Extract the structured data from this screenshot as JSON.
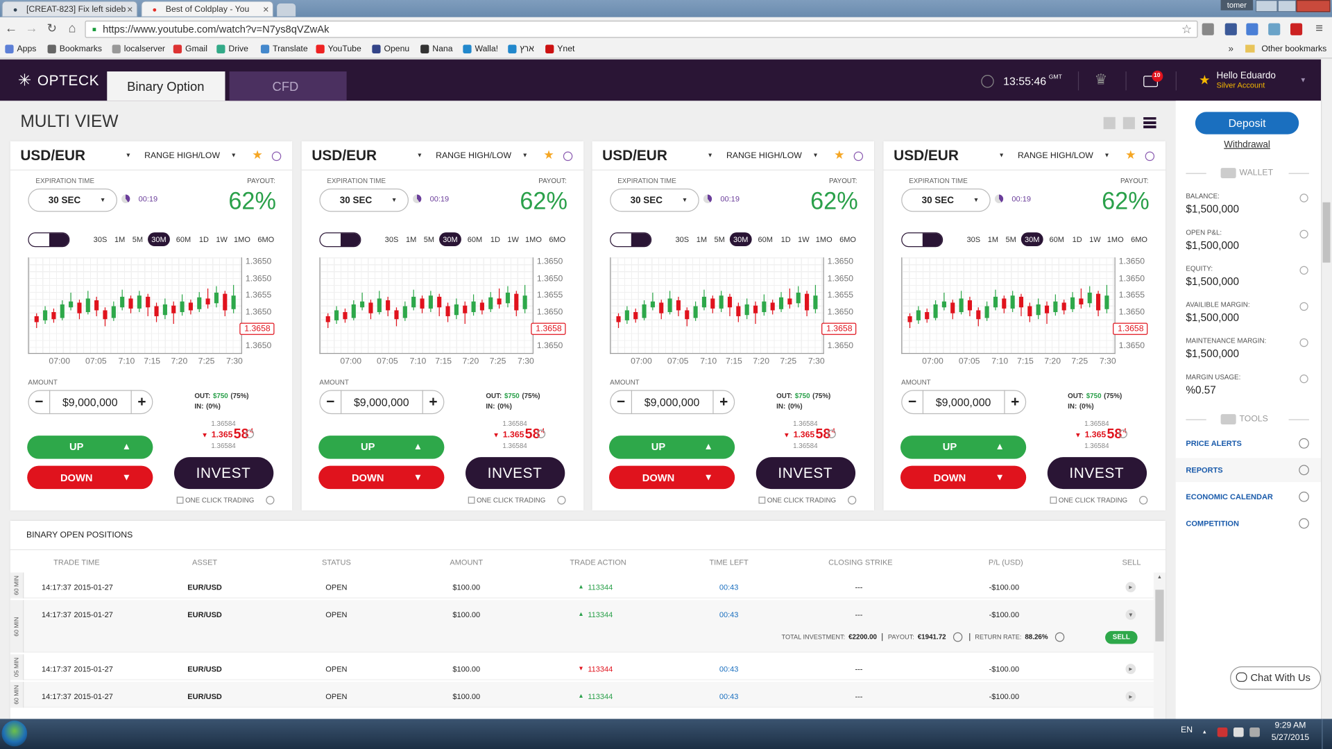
{
  "browser": {
    "tabs": [
      "[CREAT-823] Fix left sideb",
      "Best of Coldplay - You"
    ],
    "user": "tomer",
    "url": "https://www.youtube.com/watch?v=N7ys8qVZwAk",
    "bookmarks": [
      "Apps",
      "Bookmarks",
      "localserver",
      "Gmail",
      "Drive",
      "Translate",
      "YouTube",
      "Openu",
      "Nana",
      "Walla!",
      "ארץ",
      "Ynet"
    ],
    "other_bookmarks": "Other bookmarks"
  },
  "header": {
    "logo": "OPTECK",
    "tabs": [
      "Binary Option",
      "CFD"
    ],
    "time": "13:55:46",
    "time_zone": "GMT",
    "mail_count": "10",
    "greeting": "Hello Eduardo",
    "account": "Silver Account"
  },
  "page_title": "MULTI VIEW",
  "candle_chart": {
    "candles": [
      [
        1.36505,
        1.36495,
        1.3651,
        1.36485
      ],
      [
        1.36498,
        1.36515,
        1.36522,
        1.36492
      ],
      [
        1.36512,
        1.365,
        1.36518,
        1.36494
      ],
      [
        1.36502,
        1.36525,
        1.36532,
        1.36498
      ],
      [
        1.3652,
        1.3653,
        1.36545,
        1.36515
      ],
      [
        1.36528,
        1.3651,
        1.36533,
        1.365
      ],
      [
        1.36512,
        1.36535,
        1.36548,
        1.36508
      ],
      [
        1.36532,
        1.36515,
        1.36538,
        1.36505
      ],
      [
        1.36515,
        1.365,
        1.3652,
        1.36488
      ],
      [
        1.36502,
        1.36522,
        1.3653,
        1.36497
      ],
      [
        1.3652,
        1.36538,
        1.3655,
        1.36515
      ],
      [
        1.36535,
        1.36518,
        1.3654,
        1.3651
      ],
      [
        1.36518,
        1.3654,
        1.36548,
        1.36512
      ],
      [
        1.36538,
        1.3652,
        1.36543,
        1.36505
      ],
      [
        1.36522,
        1.36505,
        1.36528,
        1.36495
      ],
      [
        1.36507,
        1.36525,
        1.36535,
        1.365
      ],
      [
        1.36523,
        1.3651,
        1.3653,
        1.36492
      ],
      [
        1.36512,
        1.3653,
        1.36542,
        1.36506
      ],
      [
        1.36528,
        1.36515,
        1.36533,
        1.36508
      ],
      [
        1.36517,
        1.36537,
        1.36546,
        1.36512
      ],
      [
        1.36535,
        1.36525,
        1.36552,
        1.36518
      ],
      [
        1.36527,
        1.36545,
        1.36556,
        1.3652
      ],
      [
        1.36543,
        1.36515,
        1.36548,
        1.36505
      ],
      [
        1.36517,
        1.3654,
        1.36558,
        1.3651
      ]
    ]
  },
  "panels": [
    {
      "asset": "USD/EUR",
      "mode": "RANGE HIGH/LOW",
      "expiration_label": "EXPIRATION TIME",
      "expiration": "30 SEC",
      "countdown": "00:19",
      "payout_label": "PAYOUT:",
      "payout": "62%",
      "periods": [
        "30S",
        "1M",
        "5M",
        "30M",
        "60M",
        "1D",
        "1W",
        "1MO",
        "6MO"
      ],
      "price_labels": [
        "1.3650",
        "1.3650",
        "1.3655",
        "1.3650",
        "1.3658",
        "1.3650"
      ],
      "time_labels": [
        "07:00",
        "07:05",
        "7:10",
        "7:15",
        "7:20",
        "7:25",
        "7:30"
      ],
      "amount_label": "AMOUNT",
      "amount": "$9,000,000",
      "out_label": "OUT:",
      "out_value": "$750",
      "out_pct": "(75%)",
      "in_label": "IN:",
      "in_value": "(0%)",
      "rate_above": "1.36584",
      "rate_main": "1.365",
      "rate_big": "58",
      "rate_sup": "4",
      "rate_below": "1.36584",
      "up": "UP",
      "down": "DOWN",
      "invest": "INVEST",
      "one_click": "ONE CLICK TRADING"
    },
    {
      "asset": "USD/EUR",
      "mode": "RANGE HIGH/LOW",
      "expiration_label": "EXPIRATION TIME",
      "expiration": "30 SEC",
      "countdown": "00:19",
      "payout_label": "PAYOUT:",
      "payout": "62%",
      "periods": [
        "30S",
        "1M",
        "5M",
        "30M",
        "60M",
        "1D",
        "1W",
        "1MO",
        "6MO"
      ],
      "price_labels": [
        "1.3650",
        "1.3650",
        "1.3655",
        "1.3650",
        "1.3658",
        "1.3650"
      ],
      "time_labels": [
        "07:00",
        "07:05",
        "7:10",
        "7:15",
        "7:20",
        "7:25",
        "7:30"
      ],
      "amount_label": "AMOUNT",
      "amount": "$9,000,000",
      "out_label": "OUT:",
      "out_value": "$750",
      "out_pct": "(75%)",
      "in_label": "IN:",
      "in_value": "(0%)",
      "rate_above": "1.36584",
      "rate_main": "1.365",
      "rate_big": "58",
      "rate_sup": "4",
      "rate_below": "1.36584",
      "up": "UP",
      "down": "DOWN",
      "invest": "INVEST",
      "one_click": "ONE CLICK TRADING"
    },
    {
      "asset": "USD/EUR",
      "mode": "RANGE HIGH/LOW",
      "expiration_label": "EXPIRATION TIME",
      "expiration": "30 SEC",
      "countdown": "00:19",
      "payout_label": "PAYOUT:",
      "payout": "62%",
      "periods": [
        "30S",
        "1M",
        "5M",
        "30M",
        "60M",
        "1D",
        "1W",
        "1MO",
        "6MO"
      ],
      "price_labels": [
        "1.3650",
        "1.3650",
        "1.3655",
        "1.3650",
        "1.3658",
        "1.3650"
      ],
      "time_labels": [
        "07:00",
        "07:05",
        "7:10",
        "7:15",
        "7:20",
        "7:25",
        "7:30"
      ],
      "amount_label": "AMOUNT",
      "amount": "$9,000,000",
      "out_label": "OUT:",
      "out_value": "$750",
      "out_pct": "(75%)",
      "in_label": "IN:",
      "in_value": "(0%)",
      "rate_above": "1.36584",
      "rate_main": "1.365",
      "rate_big": "58",
      "rate_sup": "4",
      "rate_below": "1.36584",
      "up": "UP",
      "down": "DOWN",
      "invest": "INVEST",
      "one_click": "ONE CLICK TRADING"
    },
    {
      "asset": "USD/EUR",
      "mode": "RANGE HIGH/LOW",
      "expiration_label": "EXPIRATION TIME",
      "expiration": "30 SEC",
      "countdown": "00:19",
      "payout_label": "PAYOUT:",
      "payout": "62%",
      "periods": [
        "30S",
        "1M",
        "5M",
        "30M",
        "60M",
        "1D",
        "1W",
        "1MO",
        "6MO"
      ],
      "price_labels": [
        "1.3650",
        "1.3650",
        "1.3655",
        "1.3650",
        "1.3658",
        "1.3650"
      ],
      "time_labels": [
        "07:00",
        "07:05",
        "7:10",
        "7:15",
        "7:20",
        "7:25",
        "7:30"
      ],
      "amount_label": "AMOUNT",
      "amount": "$9,000,000",
      "out_label": "OUT:",
      "out_value": "$750",
      "out_pct": "(75%)",
      "in_label": "IN:",
      "in_value": "(0%)",
      "rate_above": "1.36584",
      "rate_main": "1.365",
      "rate_big": "58",
      "rate_sup": "4",
      "rate_below": "1.36584",
      "up": "UP",
      "down": "DOWN",
      "invest": "INVEST",
      "one_click": "ONE CLICK TRADING"
    }
  ],
  "positions": {
    "title": "BINARY OPEN POSITIONS",
    "headers": [
      "TRADE TIME",
      "ASSET",
      "STATUS",
      "AMOUNT",
      "TRADE ACTION",
      "TIME LEFT",
      "CLOSING STRIKE",
      "P/L (USD)",
      "SELL"
    ],
    "rows": [
      {
        "duration": "60 MIN",
        "time": "14:17:37",
        "date": "2015-01-27",
        "asset": "EUR/USD",
        "status": "OPEN",
        "amount": "$100.00",
        "direction": "up",
        "action": "113344",
        "time_left": "00:43",
        "closing": "---",
        "pl": "-$100.00"
      },
      {
        "duration": "60 MIN",
        "time": "14:17:37",
        "date": "2015-01-27",
        "asset": "EUR/USD",
        "status": "OPEN",
        "amount": "$100.00",
        "direction": "up",
        "action": "113344",
        "time_left": "00:43",
        "closing": "---",
        "pl": "-$100.00"
      },
      {
        "duration": "05 MIN",
        "time": "14:17:37",
        "date": "2015-01-27",
        "asset": "EUR/USD",
        "status": "OPEN",
        "amount": "$100.00",
        "direction": "down",
        "action": "113344",
        "time_left": "00:43",
        "closing": "---",
        "pl": "-$100.00"
      },
      {
        "duration": "60 MIN",
        "time": "14:17:37",
        "date": "2015-01-27",
        "asset": "EUR/USD",
        "status": "OPEN",
        "amount": "$100.00",
        "direction": "up",
        "action": "113344",
        "time_left": "00:43",
        "closing": "---",
        "pl": "-$100.00"
      }
    ],
    "detail": {
      "total_label": "TOTAL INVESTMENT:",
      "total": "€2200.00",
      "payout_label": "PAYOUT:",
      "payout": "€1941.72",
      "return_label": "RETURN RATE:",
      "return": "88.26%",
      "sell": "SELL"
    }
  },
  "sidebar": {
    "deposit": "Deposit",
    "withdrawal": "Withdrawal",
    "wallet": "WALLET",
    "wallet_items": [
      {
        "label": "BALANCE:",
        "value": "$1,500,000"
      },
      {
        "label": "OPEN P&L:",
        "value": "$1,500,000"
      },
      {
        "label": "EQUITY:",
        "value": "$1,500,000"
      },
      {
        "label": "AVAILIBLE MARGIN:",
        "value": "$1,500,000"
      },
      {
        "label": "MAINTENANCE MARGIN:",
        "value": "$1,500,000"
      },
      {
        "label": "MARGIN USAGE:",
        "value": "%0.57"
      }
    ],
    "tools": "TOOLS",
    "tool_links": [
      "PRICE ALERTS",
      "REPORTS",
      "ECONOMIC CALENDAR",
      "COMPETITION"
    ],
    "chat": "Chat With Us"
  },
  "taskbar": {
    "language": "EN",
    "time": "9:29 AM",
    "date": "5/27/2015"
  }
}
